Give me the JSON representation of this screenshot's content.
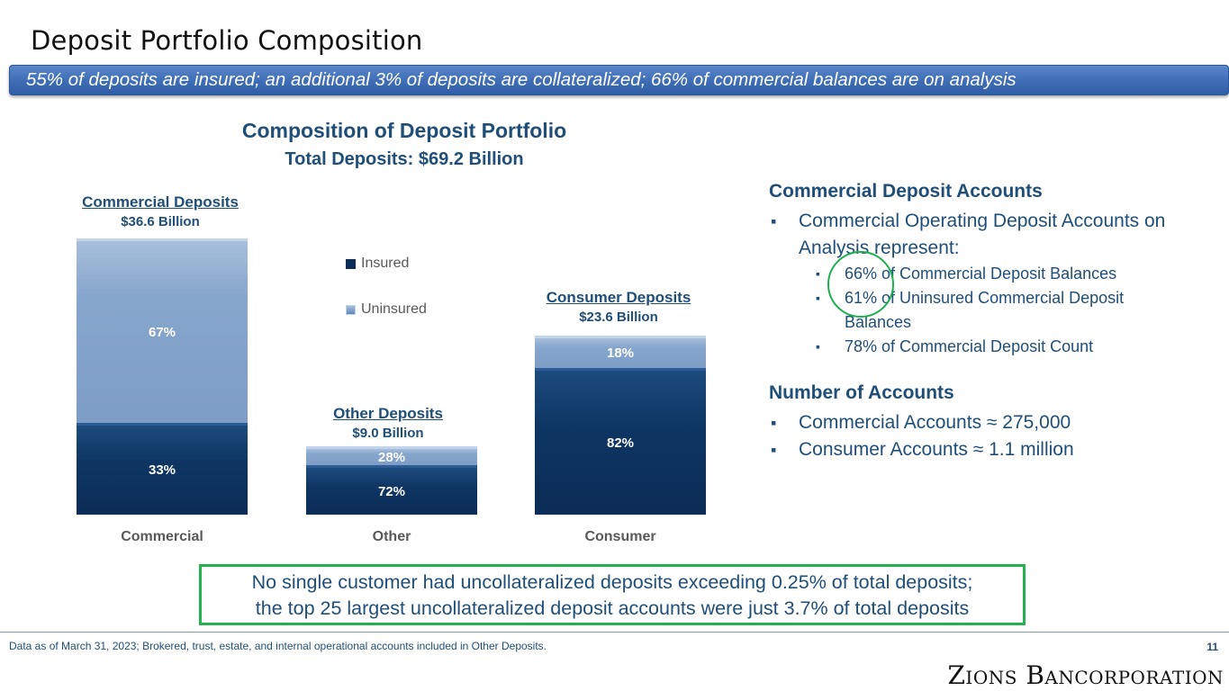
{
  "slide": {
    "title": "Deposit Portfolio Composition",
    "banner": "55% of deposits are insured; an additional 3% of deposits are collateralized; 66% of commercial balances are on analysis",
    "page_number": "11",
    "footnote": "Data as of March 31, 2023; Brokered, trust, estate, and internal operational accounts included in Other Deposits.",
    "logo_text": "Zions Bancorporation"
  },
  "chart_data": {
    "type": "bar",
    "stacked": true,
    "title": "Composition of Deposit Portfolio",
    "subtitle": "Total Deposits: $69.2 Billion",
    "categories": [
      "Commercial",
      "Other",
      "Consumer"
    ],
    "totals_billion": [
      36.6,
      9.0,
      23.6
    ],
    "group_labels": [
      {
        "name": "Commercial Deposits",
        "amount": "$36.6 Billion"
      },
      {
        "name": "Other Deposits",
        "amount": "$9.0 Billion"
      },
      {
        "name": "Consumer Deposits",
        "amount": "$23.6 Billion"
      }
    ],
    "series": [
      {
        "name": "Insured",
        "values": [
          33,
          72,
          82
        ],
        "labels": [
          "33%",
          "72%",
          "82%"
        ],
        "color": "#0b2d57"
      },
      {
        "name": "Uninsured",
        "values": [
          67,
          28,
          18
        ],
        "labels": [
          "67%",
          "28%",
          "18%"
        ],
        "color": "#87a6cc"
      }
    ],
    "legend": [
      "Insured",
      "Uninsured"
    ],
    "legend_position": "top-center"
  },
  "panel": {
    "heading1": "Commercial Deposit Accounts",
    "bullet1": "Commercial Operating Deposit Accounts on Analysis represent:",
    "sub_bullets": [
      "66% of Commercial Deposit Balances",
      "61% of Uninsured Commercial Deposit Balances",
      "78% of Commercial Deposit Count"
    ],
    "heading2": "Number of Accounts",
    "bullets2": [
      "Commercial Accounts ≈ 275,000",
      "Consumer Accounts ≈ 1.1 million"
    ]
  },
  "callout": {
    "line1": "No single customer had uncollateralized deposits exceeding 0.25% of total deposits;",
    "line2": "the top 25 largest uncollateralized deposit accounts were just 3.7% of total deposits"
  },
  "colors": {
    "accent": "#1f4e79",
    "banner": "#3e6db5",
    "callout_border": "#23b14d"
  }
}
